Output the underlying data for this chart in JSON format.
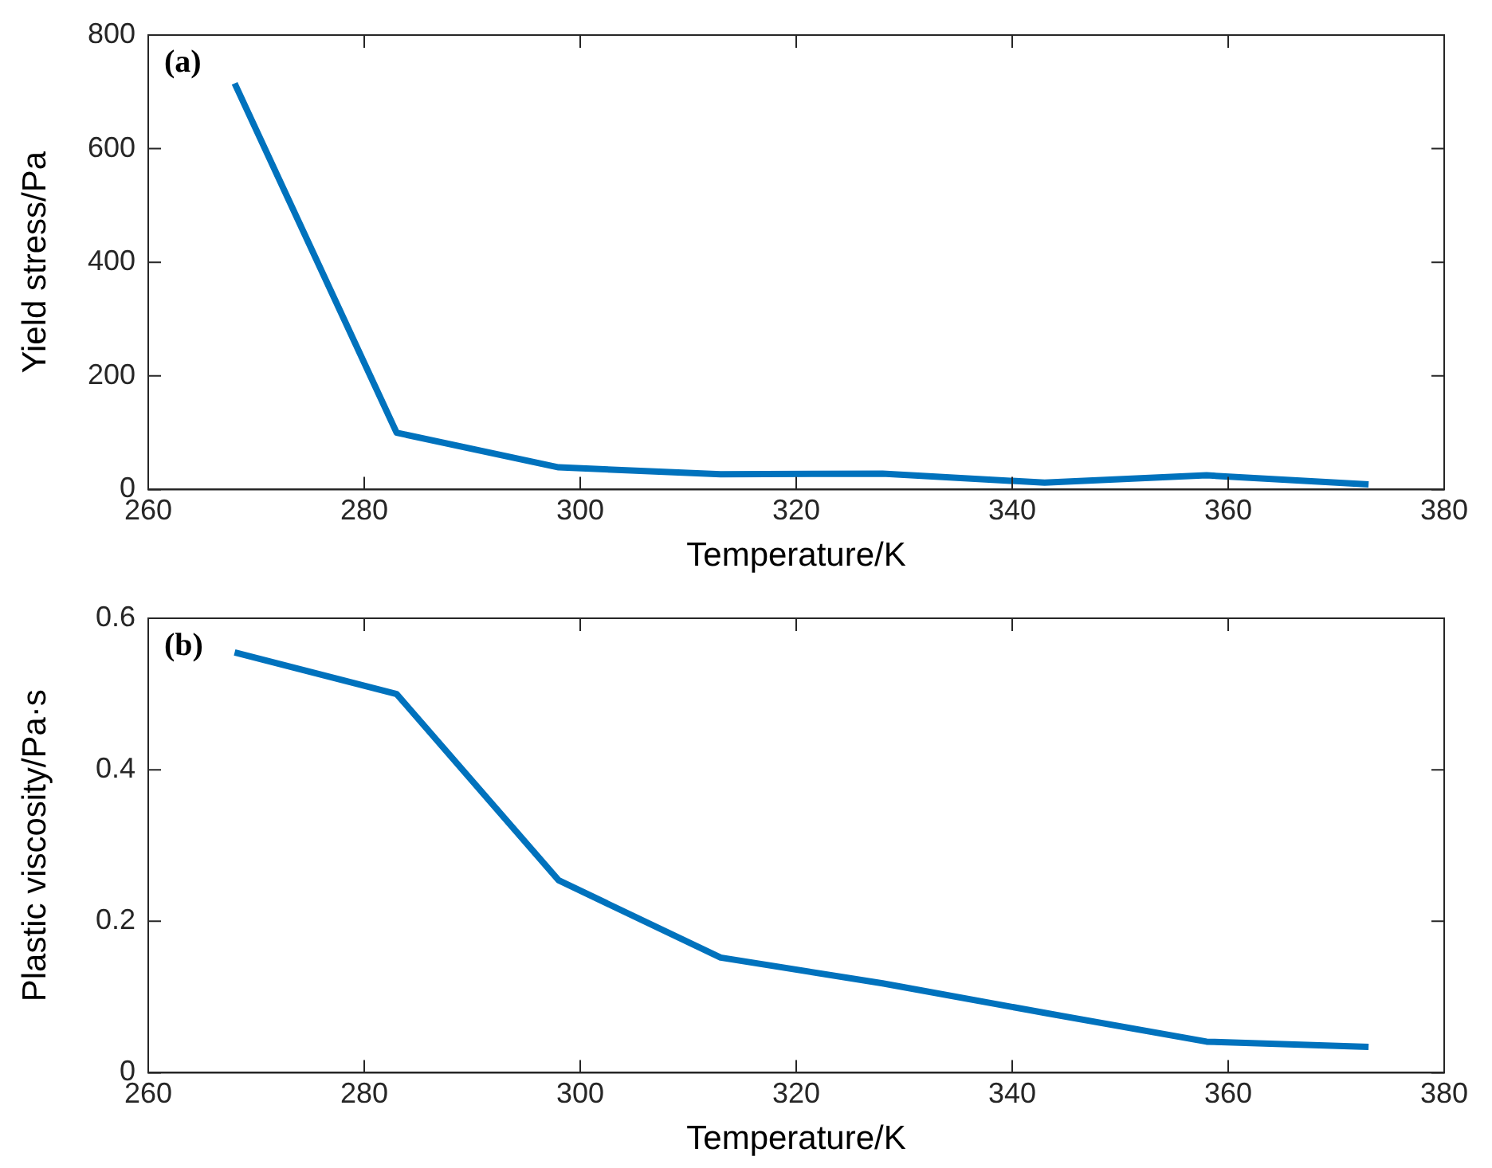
{
  "chart_data": [
    {
      "type": "line",
      "annotations": [
        "(a)"
      ],
      "xlabel": "Temperature/K",
      "ylabel": "Yield stress/Pa",
      "x": [
        268,
        283,
        298,
        313,
        328,
        343,
        358,
        373
      ],
      "series": [
        {
          "color": "#0072bd",
          "values": [
            715,
            100,
            39,
            27,
            28,
            12,
            25,
            9
          ]
        }
      ],
      "xlim": [
        260,
        380
      ],
      "xticks": [
        260,
        280,
        300,
        320,
        340,
        360,
        380
      ],
      "ylim": [
        0,
        800
      ],
      "yticks": [
        0,
        200,
        400,
        600,
        800
      ],
      "grid": false,
      "legend": false,
      "marker": "none",
      "line_style": "solid"
    },
    {
      "type": "line",
      "annotations": [
        "(b)"
      ],
      "xlabel": "Temperature/K",
      "ylabel": "Plastic viscosity/Pa·s",
      "x": [
        268,
        283,
        298,
        313,
        328,
        343,
        358,
        373
      ],
      "series": [
        {
          "color": "#0072bd",
          "values": [
            0.555,
            0.5,
            0.254,
            0.152,
            0.118,
            0.079,
            0.041,
            0.034
          ]
        }
      ],
      "xlim": [
        260,
        380
      ],
      "xticks": [
        260,
        280,
        300,
        320,
        340,
        360,
        380
      ],
      "ylim": [
        0,
        0.6
      ],
      "yticks": [
        0,
        0.2,
        0.4,
        0.6
      ],
      "grid": false,
      "legend": false,
      "marker": "none",
      "line_style": "solid"
    }
  ]
}
